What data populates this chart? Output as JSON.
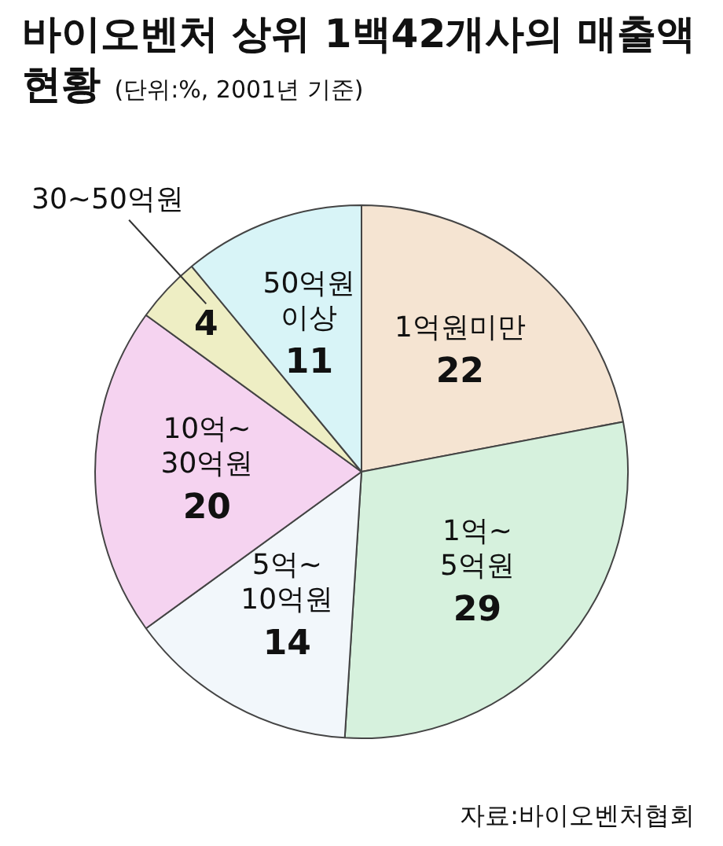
{
  "chart_data": {
    "type": "pie",
    "title": "바이오벤처 상위 1백42개사의 매출액 현황",
    "subtitle": "(단위:%, 2001년 기준)",
    "categories": [
      "1억원미만",
      "1억~5억원",
      "5억~10억원",
      "10억~30억원",
      "30~50억원",
      "50억원 이상"
    ],
    "values": [
      22,
      29,
      14,
      20,
      4,
      11
    ],
    "colors": [
      "#f5e4d2",
      "#d6f1dd",
      "#f2f7fb",
      "#f5d3f0",
      "#eeeec4",
      "#d8f4f7"
    ],
    "annotations": [
      "자료:바이오벤처협회"
    ],
    "data_labels": true,
    "legend": false
  }
}
